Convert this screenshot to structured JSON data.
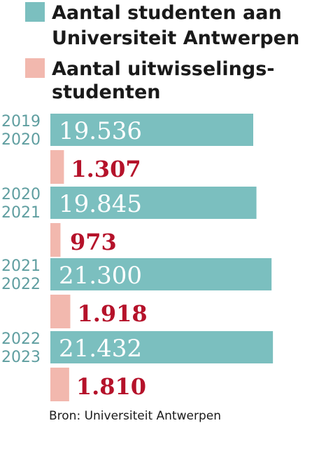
{
  "chart_data": {
    "type": "bar",
    "orientation": "horizontal",
    "categories": [
      [
        "2019",
        "2020"
      ],
      [
        "2020",
        "2021"
      ],
      [
        "2021",
        "2022"
      ],
      [
        "2022",
        "2023"
      ]
    ],
    "series": [
      {
        "name": "Aantal studenten aan Universiteit Antwerpen",
        "name_lines": [
          "Aantal studenten aan",
          "Universiteit Antwerpen"
        ],
        "values": [
          19536,
          19845,
          21300,
          21432
        ],
        "labels": [
          "19.536",
          "19.845",
          "21.300",
          "21.432"
        ],
        "color": "#7bbfbf"
      },
      {
        "name": "Aantal uitwisselingsstudenten",
        "name_lines": [
          "Aantal uitwisselings-",
          "studenten"
        ],
        "values": [
          1307,
          973,
          1918,
          1810
        ],
        "labels": [
          "1.307",
          "973",
          "1.918",
          "1.810"
        ],
        "color": "#f2b8ae"
      }
    ],
    "xlim": [
      0,
      23000
    ],
    "grid": false,
    "legend": "top",
    "source": "Bron: Universiteit Antwerpen",
    "colors": {
      "year_text": "#5f9ea0",
      "secondary_value_text": "#b5122a",
      "primary_value_text": "#ffffff"
    }
  }
}
